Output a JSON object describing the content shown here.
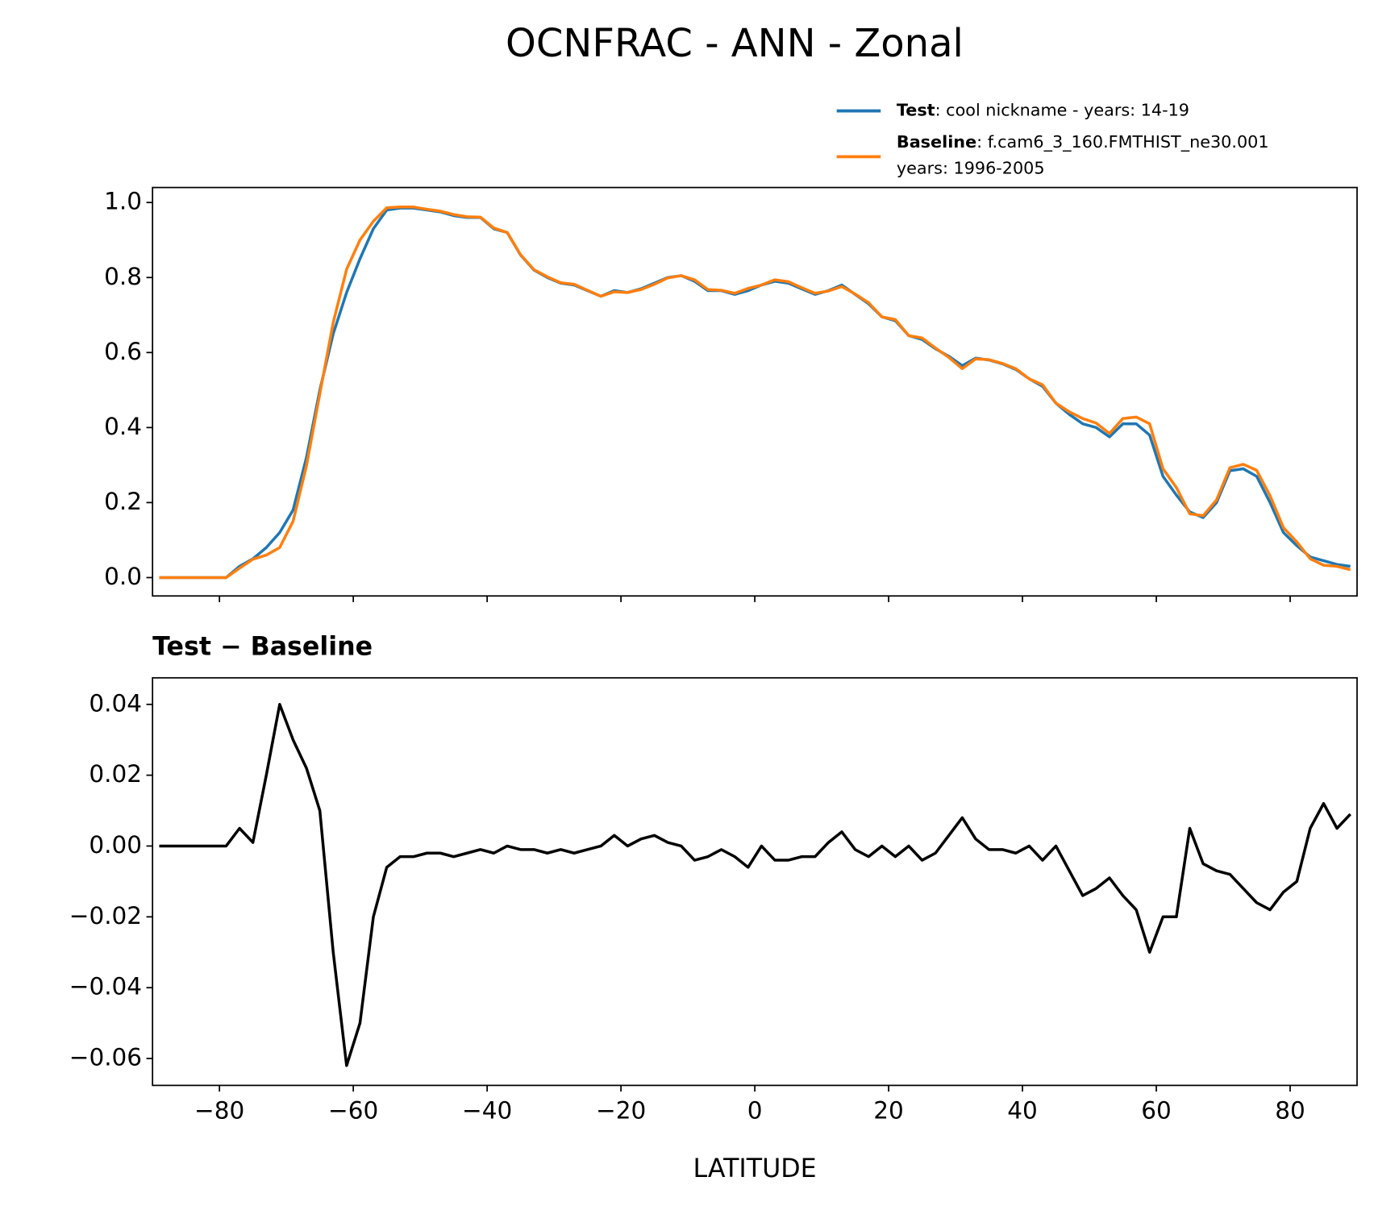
{
  "chart_data": [
    {
      "type": "line",
      "title": "OCNFRAC - ANN - Zonal",
      "x": [
        -89,
        -87,
        -85,
        -83,
        -81,
        -79,
        -77,
        -75,
        -73,
        -71,
        -69,
        -67,
        -65,
        -63,
        -61,
        -59,
        -57,
        -55,
        -53,
        -51,
        -49,
        -47,
        -45,
        -43,
        -41,
        -39,
        -37,
        -35,
        -33,
        -31,
        -29,
        -27,
        -25,
        -23,
        -21,
        -19,
        -17,
        -15,
        -13,
        -11,
        -9,
        -7,
        -5,
        -3,
        -1,
        1,
        3,
        5,
        7,
        9,
        11,
        13,
        15,
        17,
        19,
        21,
        23,
        25,
        27,
        29,
        31,
        33,
        35,
        37,
        39,
        41,
        43,
        45,
        47,
        49,
        51,
        53,
        55,
        57,
        59,
        61,
        63,
        65,
        67,
        69,
        71,
        73,
        75,
        77,
        79,
        81,
        83,
        85,
        87,
        89
      ],
      "series": [
        {
          "name": "Test",
          "description": [
            ": cool nickname - years: 14-19"
          ],
          "color": "#1f77b4",
          "values": [
            0,
            0,
            0,
            0,
            0,
            0,
            0.03,
            0.05,
            0.08,
            0.12,
            0.18,
            0.32,
            0.5,
            0.65,
            0.76,
            0.85,
            0.93,
            0.98,
            0.985,
            0.985,
            0.98,
            0.975,
            0.965,
            0.96,
            0.96,
            0.93,
            0.92,
            0.86,
            0.82,
            0.8,
            0.785,
            0.78,
            0.765,
            0.75,
            0.765,
            0.76,
            0.77,
            0.785,
            0.8,
            0.805,
            0.79,
            0.765,
            0.765,
            0.755,
            0.765,
            0.78,
            0.79,
            0.785,
            0.77,
            0.755,
            0.765,
            0.78,
            0.755,
            0.73,
            0.695,
            0.685,
            0.645,
            0.635,
            0.61,
            0.59,
            0.565,
            0.585,
            0.58,
            0.57,
            0.555,
            0.53,
            0.51,
            0.465,
            0.435,
            0.41,
            0.4,
            0.375,
            0.41,
            0.41,
            0.38,
            0.27,
            0.22,
            0.175,
            0.16,
            0.2,
            0.285,
            0.29,
            0.27,
            0.2,
            0.12,
            0.085,
            0.055,
            0.045,
            0.035,
            0.03
          ]
        },
        {
          "name": "Baseline",
          "description": [
            ": f.cam6_3_160.FMTHIST_ne30.001",
            "years: 1996-2005"
          ],
          "color": "#ff7f0e",
          "values": [
            0,
            0,
            0,
            0,
            0,
            0,
            0.025,
            0.049,
            0.06,
            0.08,
            0.15,
            0.298,
            0.49,
            0.68,
            0.822,
            0.9,
            0.95,
            0.986,
            0.988,
            0.988,
            0.982,
            0.977,
            0.968,
            0.962,
            0.961,
            0.932,
            0.92,
            0.861,
            0.821,
            0.802,
            0.786,
            0.782,
            0.766,
            0.75,
            0.762,
            0.76,
            0.768,
            0.782,
            0.799,
            0.805,
            0.794,
            0.768,
            0.766,
            0.758,
            0.771,
            0.78,
            0.794,
            0.789,
            0.773,
            0.758,
            0.764,
            0.776,
            0.756,
            0.733,
            0.695,
            0.688,
            0.645,
            0.639,
            0.612,
            0.587,
            0.557,
            0.583,
            0.581,
            0.571,
            0.557,
            0.53,
            0.514,
            0.465,
            0.442,
            0.424,
            0.412,
            0.384,
            0.424,
            0.428,
            0.41,
            0.29,
            0.24,
            0.17,
            0.165,
            0.207,
            0.293,
            0.302,
            0.286,
            0.218,
            0.133,
            0.095,
            0.05,
            0.033,
            0.03,
            0.021
          ]
        }
      ],
      "xlim": [
        -90,
        90
      ],
      "xticks": [
        -80,
        -60,
        -40,
        -20,
        0,
        20,
        40,
        60,
        80
      ],
      "ylim": [
        -0.049,
        1.04
      ],
      "yticks": [
        {
          "value": 0,
          "label": "0.0"
        },
        {
          "value": 0.2,
          "label": "0.2"
        },
        {
          "value": 0.4,
          "label": "0.4"
        },
        {
          "value": 0.6,
          "label": "0.6"
        },
        {
          "value": 0.8,
          "label": "0.8"
        },
        {
          "value": 1,
          "label": "1.0"
        }
      ],
      "legend": "upper right outside"
    },
    {
      "type": "line",
      "title": "Test − Baseline",
      "xlabel": "LATITUDE",
      "x": [
        -89,
        -87,
        -85,
        -83,
        -81,
        -79,
        -77,
        -75,
        -73,
        -71,
        -69,
        -67,
        -65,
        -63,
        -61,
        -59,
        -57,
        -55,
        -53,
        -51,
        -49,
        -47,
        -45,
        -43,
        -41,
        -39,
        -37,
        -35,
        -33,
        -31,
        -29,
        -27,
        -25,
        -23,
        -21,
        -19,
        -17,
        -15,
        -13,
        -11,
        -9,
        -7,
        -5,
        -3,
        -1,
        1,
        3,
        5,
        7,
        9,
        11,
        13,
        15,
        17,
        19,
        21,
        23,
        25,
        27,
        29,
        31,
        33,
        35,
        37,
        39,
        41,
        43,
        45,
        47,
        49,
        51,
        53,
        55,
        57,
        59,
        61,
        63,
        65,
        67,
        69,
        71,
        73,
        75,
        77,
        79,
        81,
        83,
        85,
        87,
        89
      ],
      "series": [
        {
          "color": "#000000",
          "values": [
            0,
            0,
            0,
            0,
            0,
            0,
            0.005,
            0.001,
            0.02,
            0.04,
            0.03,
            0.022,
            0.01,
            -0.03,
            -0.062,
            -0.05,
            -0.02,
            -0.006,
            -0.003,
            -0.003,
            -0.002,
            -0.002,
            -0.003,
            -0.002,
            -0.001,
            -0.002,
            0,
            -0.001,
            -0.001,
            -0.002,
            -0.001,
            -0.002,
            -0.001,
            0,
            0.003,
            0,
            0.002,
            0.003,
            0.001,
            0,
            -0.004,
            -0.003,
            -0.001,
            -0.003,
            -0.006,
            0,
            -0.004,
            -0.004,
            -0.003,
            -0.003,
            0.001,
            0.004,
            -0.001,
            -0.003,
            0,
            -0.003,
            0,
            -0.004,
            -0.002,
            0.003,
            0.008,
            0.002,
            -0.001,
            -0.001,
            -0.002,
            0,
            -0.004,
            0,
            -0.007,
            -0.014,
            -0.012,
            -0.009,
            -0.014,
            -0.018,
            -0.03,
            -0.02,
            -0.02,
            0.005,
            -0.005,
            -0.007,
            -0.008,
            -0.012,
            -0.016,
            -0.018,
            -0.013,
            -0.01,
            0.005,
            0.012,
            0.005,
            0.009
          ]
        }
      ],
      "xlim": [
        -90,
        90
      ],
      "xticks": [
        {
          "value": -80,
          "label": "−80"
        },
        {
          "value": -60,
          "label": "−60"
        },
        {
          "value": -40,
          "label": "−40"
        },
        {
          "value": -20,
          "label": "−20"
        },
        0,
        20,
        40,
        60,
        80
      ],
      "ylim": [
        -0.0676,
        0.0475
      ],
      "yticks": [
        {
          "value": -0.06,
          "label": "−0.06"
        },
        {
          "value": -0.04,
          "label": "−0.04"
        },
        {
          "value": -0.02,
          "label": "−0.02"
        },
        {
          "value": 0,
          "label": "0.00"
        },
        0.02,
        0.04
      ]
    }
  ]
}
